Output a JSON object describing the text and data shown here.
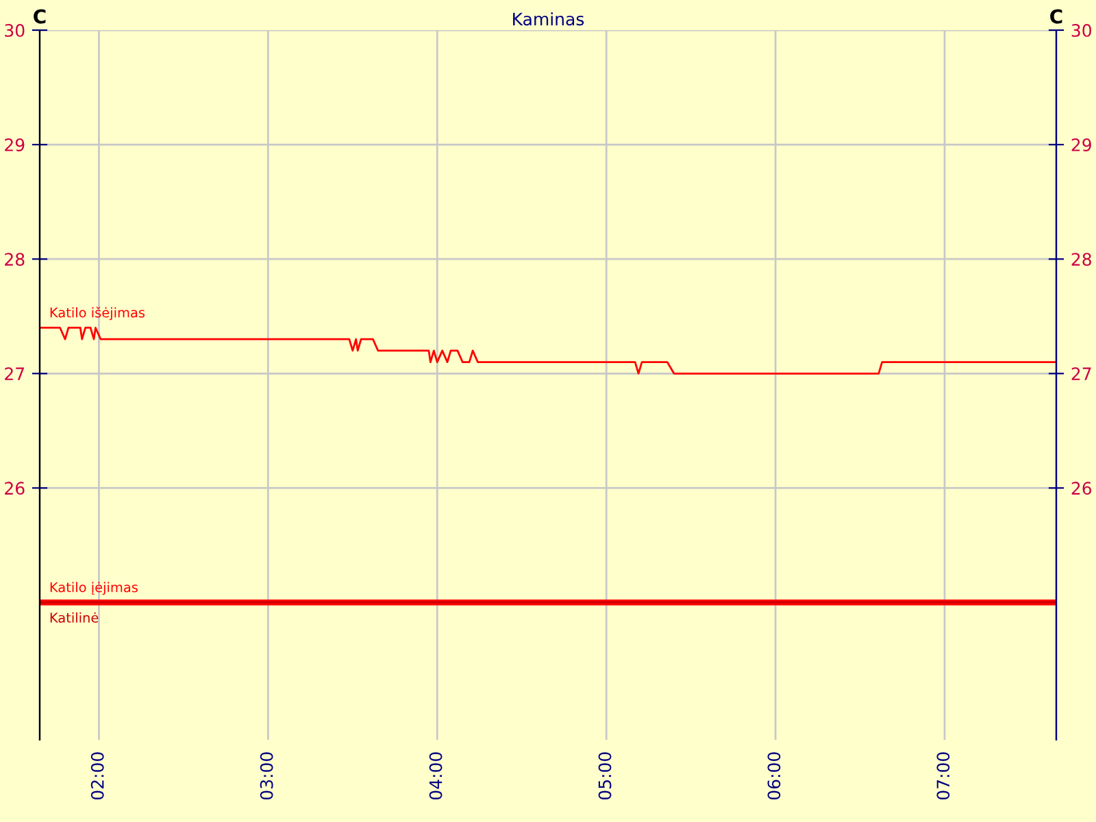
{
  "chart_data": {
    "type": "line",
    "title": "Kaminas",
    "ylabel": "C",
    "y2label": "C",
    "xlim": [
      1.65,
      7.66
    ],
    "xticks": [
      {
        "value": 2,
        "label": "02:00"
      },
      {
        "value": 3,
        "label": "03:00"
      },
      {
        "value": 4,
        "label": "04:00"
      },
      {
        "value": 5,
        "label": "05:00"
      },
      {
        "value": 6,
        "label": "06:00"
      },
      {
        "value": 7,
        "label": "07:00"
      }
    ],
    "ylim": [
      23.8,
      30
    ],
    "yticks": [
      26,
      27,
      28,
      29,
      30
    ],
    "y2lim": [
      23.8,
      30
    ],
    "y2ticks": [
      26,
      27,
      28,
      29,
      30
    ],
    "grid": true,
    "legend": false,
    "marker": "none",
    "line_style": "solid",
    "series": [
      {
        "name": "Katilo išėjimas",
        "color": "#ff0000",
        "x": [
          1.65,
          1.77,
          1.8,
          1.82,
          1.89,
          1.9,
          1.92,
          1.95,
          1.97,
          1.98,
          2.01,
          3.48,
          3.5,
          3.52,
          3.53,
          3.55,
          3.62,
          3.65,
          3.95,
          3.96,
          3.98,
          4.0,
          4.03,
          4.06,
          4.08,
          4.12,
          4.15,
          4.19,
          4.21,
          4.24,
          4.25,
          5.17,
          5.19,
          5.21,
          5.36,
          5.4,
          6.61,
          6.63,
          7.66
        ],
        "values": [
          27.4,
          27.4,
          27.3,
          27.4,
          27.4,
          27.3,
          27.4,
          27.4,
          27.3,
          27.4,
          27.3,
          27.3,
          27.2,
          27.3,
          27.2,
          27.3,
          27.3,
          27.2,
          27.2,
          27.1,
          27.2,
          27.1,
          27.2,
          27.1,
          27.2,
          27.2,
          27.1,
          27.1,
          27.2,
          27.1,
          27.1,
          27.1,
          27.0,
          27.1,
          27.1,
          27.0,
          27.0,
          27.1,
          27.1
        ]
      },
      {
        "name": "Katilo įėjimas",
        "color": "#ff0000",
        "x": [
          1.65,
          7.66
        ],
        "values": [
          25.0,
          25.0
        ]
      },
      {
        "name": "Katilinė",
        "color": "#cc0000",
        "x": [
          1.65,
          7.66
        ],
        "values": [
          25.0,
          25.0
        ]
      }
    ]
  }
}
